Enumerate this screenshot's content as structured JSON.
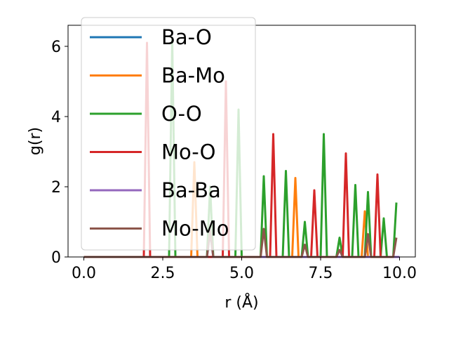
{
  "chart_data": {
    "type": "line",
    "xlabel": "r (Å)",
    "ylabel": "g(r)",
    "xlim": [
      -0.5,
      10.5
    ],
    "ylim": [
      0,
      6.6
    ],
    "xticks": [
      0.0,
      2.5,
      5.0,
      7.5,
      10.0
    ],
    "xtick_labels": [
      "0.0",
      "2.5",
      "5.0",
      "7.5",
      "10.0"
    ],
    "yticks": [
      0,
      2,
      4,
      6
    ],
    "ytick_labels": [
      "0",
      "2",
      "4",
      "6"
    ],
    "grid": false,
    "legend_position": "top-left",
    "series": [
      {
        "name": "Ba-O",
        "color": "#1f77b4",
        "x": [
          0,
          10
        ],
        "y": [
          0,
          0
        ]
      },
      {
        "name": "Ba-Mo",
        "color": "#ff7f0e",
        "x": [
          0,
          3.4,
          3.5,
          3.6,
          6.6,
          6.7,
          6.8,
          8.8,
          8.9,
          9.0,
          10
        ],
        "y": [
          0,
          0,
          2.7,
          0,
          0,
          2.25,
          0,
          0,
          1.3,
          0,
          0
        ]
      },
      {
        "name": "O-O",
        "color": "#2ca02c",
        "x": [
          0,
          2.7,
          2.8,
          2.9,
          3.9,
          4.0,
          4.1,
          4.8,
          4.9,
          5.0,
          5.6,
          5.7,
          5.8,
          6.3,
          6.4,
          6.5,
          6.9,
          7.0,
          7.1,
          7.5,
          7.6,
          7.7,
          8.0,
          8.1,
          8.2,
          8.5,
          8.6,
          8.7,
          8.9,
          9.0,
          9.1,
          9.4,
          9.5,
          9.6,
          9.8,
          9.9
        ],
        "y": [
          0,
          0,
          6.2,
          0,
          0,
          2.0,
          0,
          0,
          4.2,
          0,
          0,
          2.3,
          0,
          0,
          2.45,
          0,
          0,
          1.0,
          0,
          0,
          3.5,
          0,
          0,
          0.55,
          0,
          0,
          2.05,
          0,
          0,
          1.85,
          0,
          0,
          1.1,
          0,
          0,
          1.55
        ]
      },
      {
        "name": "Mo-O",
        "color": "#d62728",
        "x": [
          0,
          1.9,
          2.0,
          2.1,
          4.4,
          4.5,
          4.6,
          5.9,
          6.0,
          6.1,
          7.2,
          7.3,
          7.4,
          8.2,
          8.3,
          8.4,
          9.2,
          9.3,
          9.4,
          10
        ],
        "y": [
          0,
          0,
          6.1,
          0,
          0,
          5.0,
          0,
          0,
          3.5,
          0,
          0,
          1.9,
          0,
          0,
          2.95,
          0,
          0,
          2.35,
          0,
          0
        ]
      },
      {
        "name": "Ba-Ba",
        "color": "#9467bd",
        "x": [
          0,
          3.9,
          4.0,
          4.1,
          10
        ],
        "y": [
          0,
          0,
          0.7,
          0,
          0
        ]
      },
      {
        "name": "Mo-Mo",
        "color": "#8c564b",
        "x": [
          0,
          3.9,
          4.0,
          4.1,
          5.6,
          5.7,
          5.8,
          6.9,
          7.0,
          7.1,
          8.0,
          8.1,
          8.2,
          8.9,
          9.0,
          9.1,
          9.8,
          9.9
        ],
        "y": [
          0,
          0,
          0.75,
          0,
          0,
          0.8,
          0,
          0,
          0.35,
          0,
          0,
          0.2,
          0,
          0,
          0.65,
          0,
          0,
          0.55
        ]
      }
    ]
  }
}
